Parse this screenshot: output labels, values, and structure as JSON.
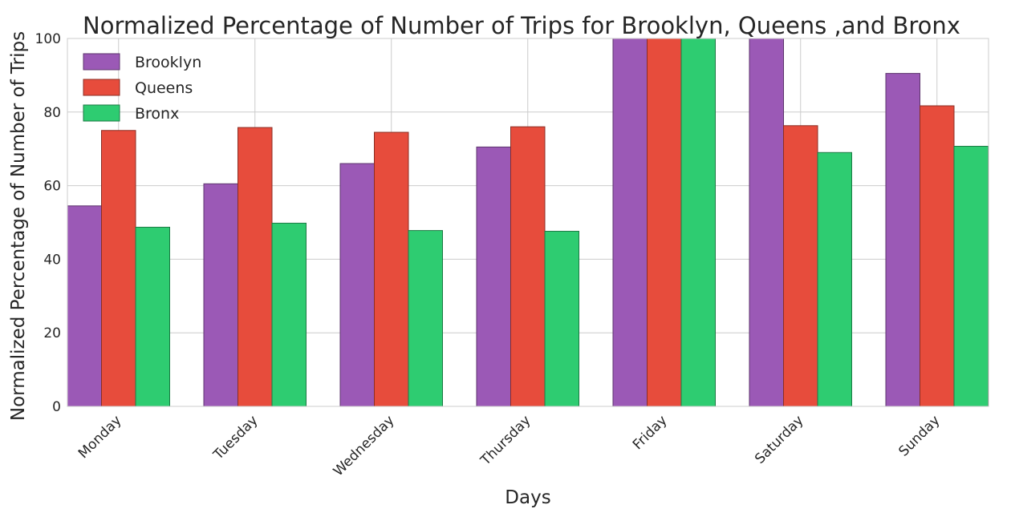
{
  "chart_data": {
    "type": "bar",
    "title": "Normalized Percentage of Number of Trips for Brooklyn, Queens ,and Bronx",
    "xlabel": "Days",
    "ylabel": "Normalized Percentage of Number of Trips",
    "ylim": [
      0,
      100
    ],
    "yticks": [
      "0",
      "20",
      "40",
      "60",
      "80",
      "100"
    ],
    "categories": [
      "Monday",
      "Tuesday",
      "Wednesday",
      "Thursday",
      "Friday",
      "Saturday",
      "Sunday"
    ],
    "series": [
      {
        "name": "Brooklyn",
        "color": "#9b59b6",
        "values": [
          54.5,
          60.5,
          66.0,
          70.5,
          100.0,
          100.0,
          90.5
        ]
      },
      {
        "name": "Queens",
        "color": "#e74c3c",
        "values": [
          75.0,
          75.8,
          74.5,
          76.0,
          100.0,
          76.3,
          81.7
        ]
      },
      {
        "name": "Bronx",
        "color": "#2ecc71",
        "values": [
          48.7,
          49.8,
          47.8,
          47.6,
          100.0,
          69.0,
          70.7
        ]
      }
    ],
    "grid": true,
    "legend_position": "top-left"
  }
}
